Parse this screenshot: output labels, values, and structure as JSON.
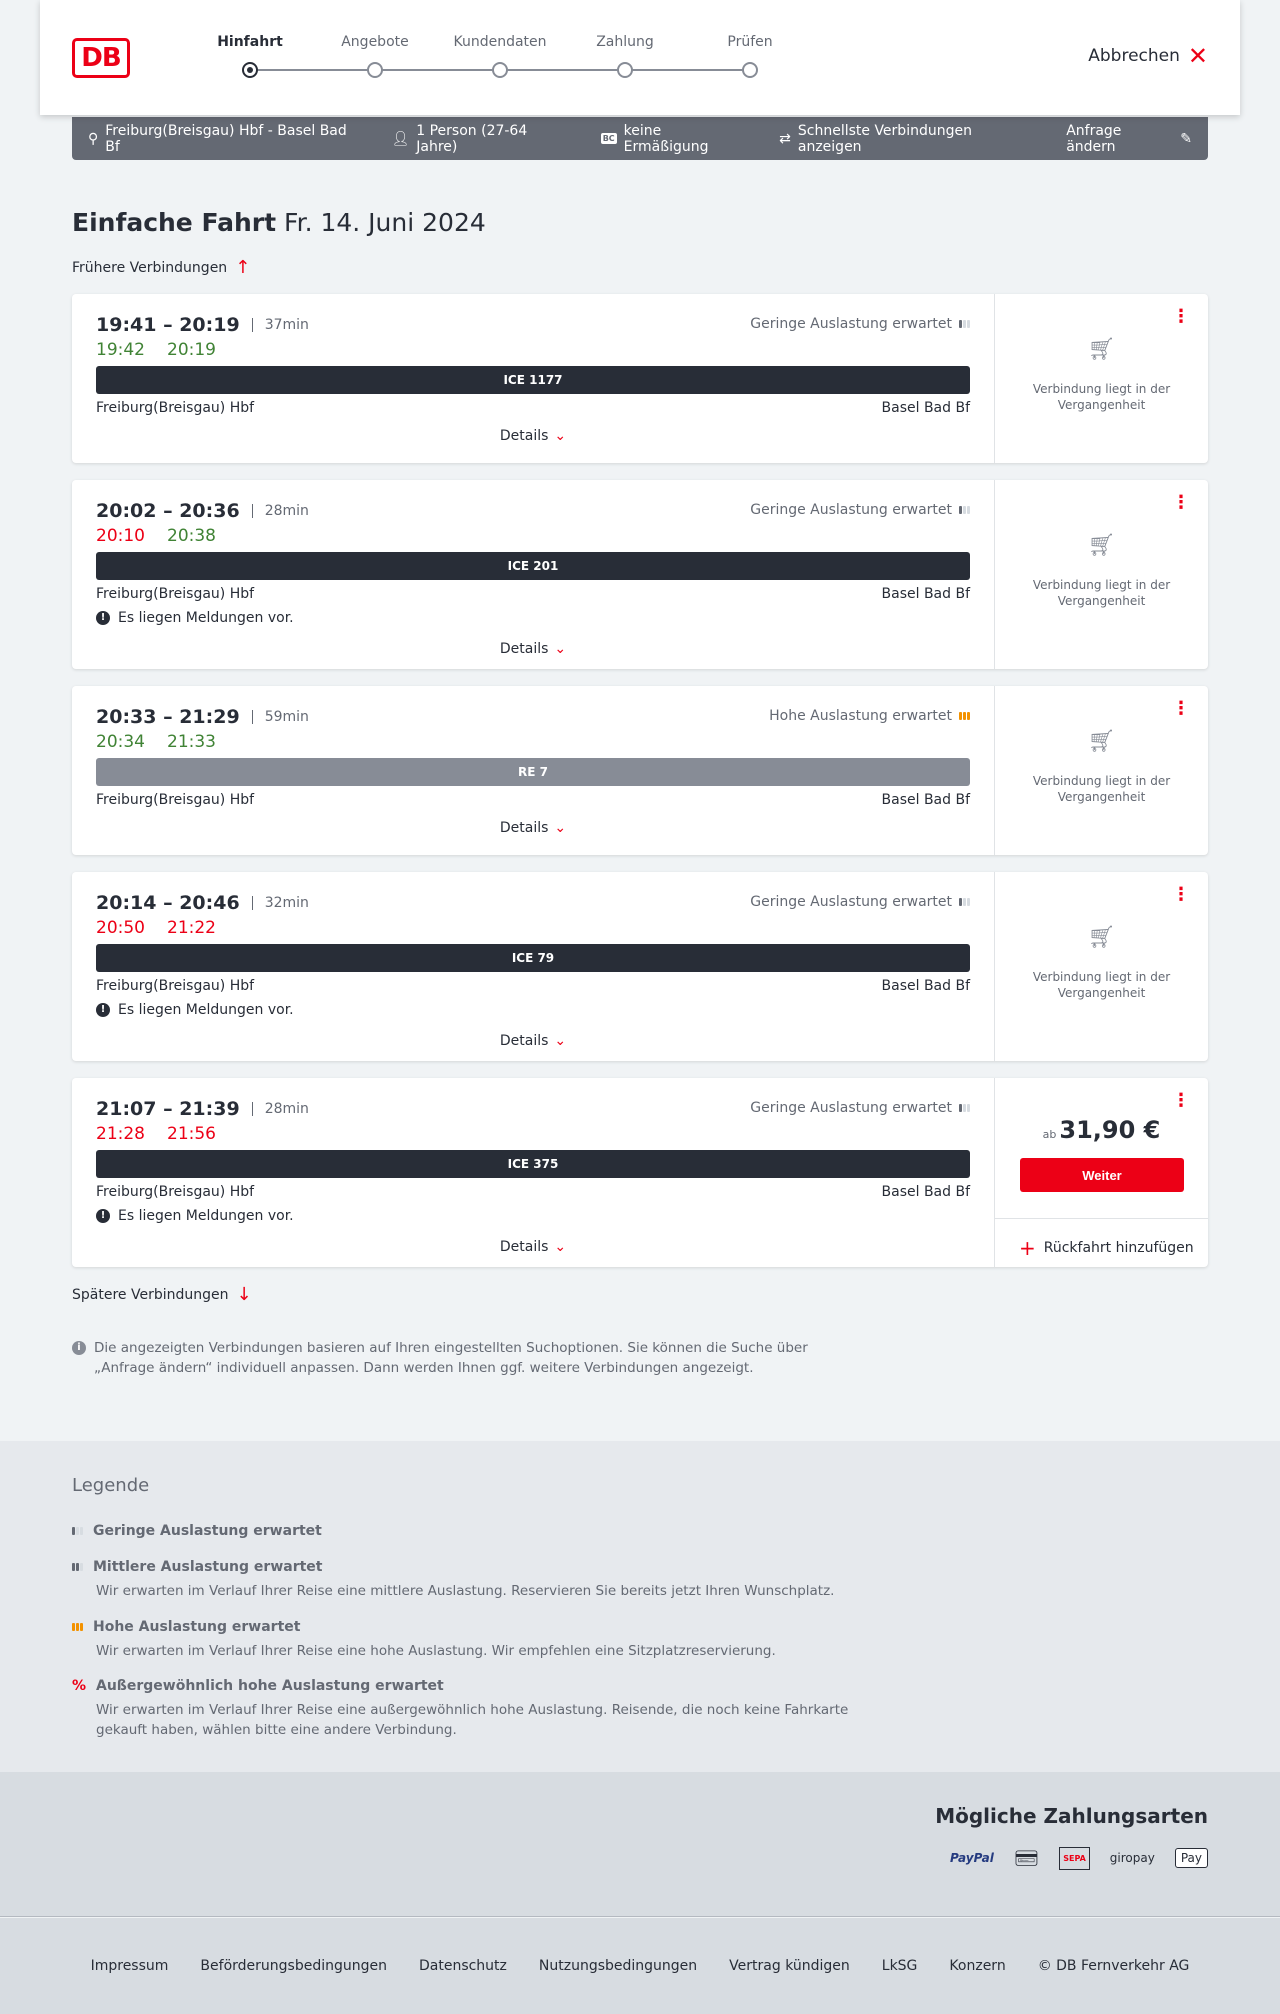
{
  "header": {
    "logo": "DB",
    "steps": [
      "Hinfahrt",
      "Angebote",
      "Kundendaten",
      "Zahlung",
      "Prüfen"
    ],
    "active_step": 0,
    "cancel": "Abbrechen"
  },
  "infobar": {
    "route": "Freiburg(Breisgau) Hbf - Basel Bad Bf",
    "passengers": "1 Person (27-64 Jahre)",
    "bc": "BC",
    "discount": "keine Ermäßigung",
    "fastest": "Schnellste Verbindungen anzeigen",
    "edit": "Anfrage ändern"
  },
  "title": {
    "main": "Einfache Fahrt",
    "date": "Fr. 14. Juni 2024"
  },
  "earlier": "Frühere Verbindungen",
  "later": "Spätere Verbindungen",
  "connections": [
    {
      "times": "19:41 – 20:19",
      "duration": "37min",
      "load": "Geringe Auslastung erwartet",
      "load_level": 1,
      "rt_dep": "19:42",
      "rt_dep_color": "green",
      "rt_arr": "20:19",
      "rt_arr_color": "green",
      "train": "ICE 1177",
      "from": "Freiburg(Breisgau) Hbf",
      "to": "Basel Bad Bf",
      "message": "",
      "details": "Details",
      "status": "Verbindung liegt in der Vergangenheit"
    },
    {
      "times": "20:02 – 20:36",
      "duration": "28min",
      "load": "Geringe Auslastung erwartet",
      "load_level": 1,
      "rt_dep": "20:10",
      "rt_dep_color": "red",
      "rt_arr": "20:38",
      "rt_arr_color": "green",
      "train": "ICE 201",
      "from": "Freiburg(Breisgau) Hbf",
      "to": "Basel Bad Bf",
      "message": "Es liegen Meldungen vor.",
      "details": "Details",
      "status": "Verbindung liegt in der Vergangenheit"
    },
    {
      "times": "20:33 – 21:29",
      "duration": "59min",
      "load": "Hohe Auslastung erwartet",
      "load_level": 3,
      "rt_dep": "20:34",
      "rt_dep_color": "green",
      "rt_arr": "21:33",
      "rt_arr_color": "green",
      "train": "RE 7",
      "from": "Freiburg(Breisgau) Hbf",
      "to": "Basel Bad Bf",
      "message": "",
      "details": "Details",
      "status": "Verbindung liegt in der Vergangenheit"
    },
    {
      "times": "20:14 – 20:46",
      "duration": "32min",
      "load": "Geringe Auslastung erwartet",
      "load_level": 1,
      "rt_dep": "20:50",
      "rt_dep_color": "red",
      "rt_arr": "21:22",
      "rt_arr_color": "red",
      "train": "ICE 79",
      "from": "Freiburg(Breisgau) Hbf",
      "to": "Basel Bad Bf",
      "message": "Es liegen Meldungen vor.",
      "details": "Details",
      "status": "Verbindung liegt in der Vergangenheit"
    },
    {
      "times": "21:07 – 21:39",
      "duration": "28min",
      "load": "Geringe Auslastung erwartet",
      "load_level": 1,
      "rt_dep": "21:28",
      "rt_dep_color": "red",
      "rt_arr": "21:56",
      "rt_arr_color": "red",
      "train": "ICE 375",
      "from": "Freiburg(Breisgau) Hbf",
      "to": "Basel Bad Bf",
      "message": "Es liegen Meldungen vor.",
      "details": "Details",
      "price_prefix": "ab",
      "price": "31,90 €",
      "button": "Weiter",
      "return": "Rückfahrt hinzufügen"
    }
  ],
  "note": "Die angezeigten Verbindungen basieren auf Ihren eingestellten Suchoptionen. Sie können die Suche über „Anfrage ändern“ individuell anpassen. Dann werden Ihnen ggf. weitere Verbindungen angezeigt.",
  "legend": {
    "title": "Legende",
    "items": [
      {
        "title": "Geringe Auslastung erwartet",
        "desc": ""
      },
      {
        "title": "Mittlere Auslastung erwartet",
        "desc": "Wir erwarten im Verlauf Ihrer Reise eine mittlere Auslastung. Reservieren Sie bereits jetzt Ihren Wunschplatz."
      },
      {
        "title": "Hohe Auslastung erwartet",
        "desc": "Wir erwarten im Verlauf Ihrer Reise eine hohe Auslastung. Wir empfehlen eine Sitzplatzreservierung."
      },
      {
        "title": "Außergewöhnlich hohe Auslastung erwartet",
        "desc": "Wir erwarten im Verlauf Ihrer Reise eine außergewöhnlich hohe Auslastung. Reisende, die noch keine Fahrkarte gekauft haben, wählen bitte eine andere Verbindung."
      }
    ]
  },
  "payment": {
    "title": "Mögliche Zahlungsarten",
    "methods": [
      "PayPal",
      "Kreditkarte",
      "SEPA",
      "giropay",
      "Apple Pay"
    ]
  },
  "footer": [
    "Impressum",
    "Beförderungsbedingungen",
    "Datenschutz",
    "Nutzungsbedingungen",
    "Vertrag kündigen",
    "LkSG",
    "Konzern",
    "© DB Fernverkehr AG"
  ],
  "colors": {
    "accent": "#ec0016",
    "green": "#408335",
    "dark": "#282d37",
    "high_load": "#f39200"
  }
}
